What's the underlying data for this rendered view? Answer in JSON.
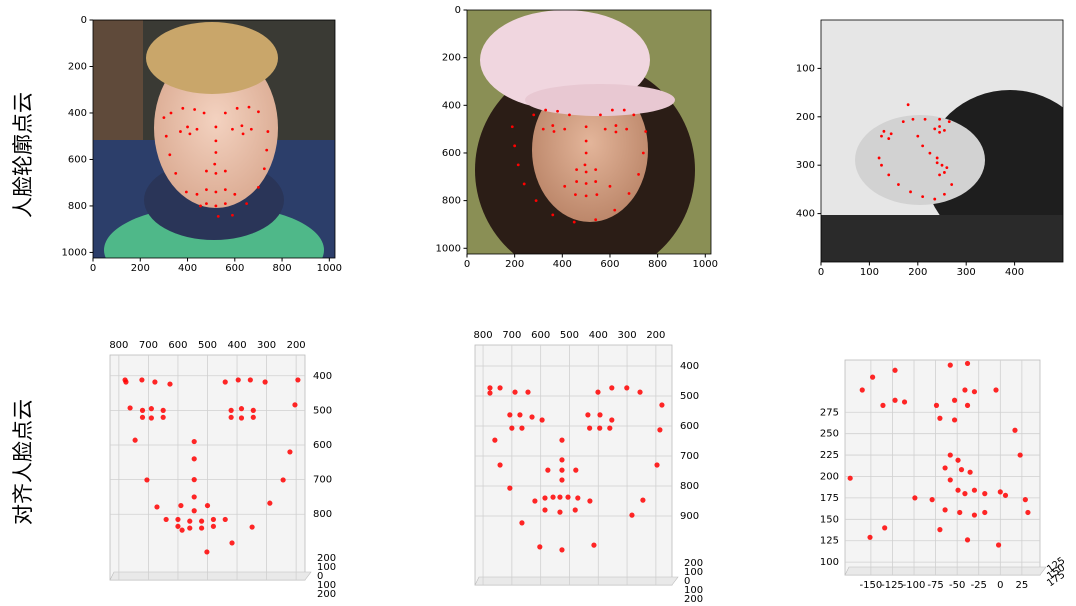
{
  "row_labels": [
    "人脸轮廓点云",
    "对齐人脸点云"
  ],
  "chart_data": [
    {
      "type": "imshow",
      "color": "#ff0000",
      "xlim": [
        0,
        1024
      ],
      "ylim": [
        1024,
        0
      ],
      "xticks": [
        0,
        200,
        400,
        600,
        800,
        1000
      ],
      "yticks": [
        0,
        200,
        400,
        600,
        800,
        1000
      ],
      "x": [
        300,
        310,
        325,
        350,
        395,
        455,
        530,
        590,
        650,
        700,
        725,
        735,
        740,
        330,
        380,
        430,
        470,
        560,
        610,
        660,
        700,
        520,
        520,
        520,
        515,
        480,
        520,
        560,
        370,
        400,
        440,
        410,
        590,
        630,
        670,
        635,
        440,
        480,
        520,
        560,
        600,
        560,
        520,
        480
      ],
      "y": [
        420,
        500,
        580,
        660,
        740,
        800,
        845,
        840,
        790,
        720,
        640,
        560,
        480,
        400,
        380,
        385,
        400,
        400,
        380,
        375,
        395,
        460,
        520,
        570,
        620,
        650,
        660,
        650,
        480,
        460,
        470,
        490,
        470,
        455,
        470,
        490,
        750,
        730,
        740,
        730,
        750,
        790,
        800,
        790
      ]
    },
    {
      "type": "imshow",
      "color": "#ff0000",
      "xlim": [
        0,
        1024
      ],
      "ylim": [
        1024,
        0
      ],
      "xticks": [
        0,
        200,
        400,
        600,
        800,
        1000
      ],
      "yticks": [
        0,
        200,
        400,
        600,
        800,
        1000
      ],
      "x": [
        190,
        200,
        215,
        240,
        290,
        360,
        450,
        540,
        620,
        680,
        720,
        740,
        750,
        280,
        330,
        380,
        430,
        560,
        610,
        660,
        700,
        500,
        500,
        500,
        495,
        460,
        500,
        540,
        320,
        360,
        410,
        365,
        580,
        625,
        670,
        625,
        410,
        460,
        500,
        540,
        600,
        545,
        500,
        455
      ],
      "y": [
        490,
        570,
        650,
        730,
        800,
        860,
        890,
        880,
        840,
        770,
        690,
        600,
        510,
        440,
        420,
        425,
        440,
        440,
        420,
        420,
        440,
        490,
        550,
        600,
        650,
        670,
        680,
        670,
        500,
        485,
        500,
        510,
        500,
        485,
        500,
        512,
        740,
        720,
        728,
        720,
        740,
        775,
        780,
        775
      ]
    },
    {
      "type": "imshow",
      "color": "#ff0000",
      "xlim": [
        0,
        500
      ],
      "ylim": [
        500,
        0
      ],
      "xticks": [
        0,
        100,
        200,
        300,
        400
      ],
      "yticks": [
        100,
        200,
        300,
        400
      ],
      "x": [
        120,
        125,
        140,
        160,
        185,
        210,
        235,
        255,
        270,
        170,
        190,
        215,
        245,
        265,
        125,
        130,
        145,
        140,
        235,
        245,
        255,
        245,
        180,
        200,
        210,
        225,
        240,
        240,
        250,
        260,
        255,
        245
      ],
      "y": [
        285,
        300,
        320,
        340,
        355,
        365,
        370,
        360,
        340,
        210,
        205,
        205,
        205,
        210,
        240,
        230,
        235,
        245,
        225,
        220,
        228,
        232,
        175,
        240,
        260,
        275,
        285,
        295,
        300,
        305,
        315,
        320
      ]
    },
    {
      "type": "scatter3d",
      "color": "#ff0000",
      "xlim": [
        830,
        170
      ],
      "ylim": [
        990,
        340
      ],
      "xticks": [
        800,
        700,
        600,
        500,
        400,
        300,
        200
      ],
      "yticks": [
        400,
        500,
        600,
        700,
        800
      ],
      "zticks": [
        200,
        100,
        0,
        100,
        200
      ],
      "x": [
        779,
        762,
        745,
        705,
        671,
        586,
        502,
        417,
        349,
        289,
        244,
        221,
        204,
        194,
        776,
        722,
        678,
        627,
        440,
        396,
        355,
        305,
        720,
        690,
        650,
        690,
        720,
        650,
        420,
        385,
        345,
        385,
        420,
        345,
        545,
        545,
        545,
        545,
        590,
        545,
        500,
        640,
        600,
        560,
        520,
        480,
        440,
        560,
        520,
        600,
        480
      ],
      "y": [
        412,
        493,
        586,
        701,
        779,
        846,
        909,
        883,
        837,
        768,
        701,
        620,
        484,
        412,
        418,
        412,
        418,
        424,
        418,
        412,
        412,
        418,
        500,
        495,
        500,
        522,
        520,
        520,
        500,
        495,
        500,
        522,
        520,
        520,
        590,
        640,
        700,
        750,
        775,
        790,
        775,
        815,
        815,
        820,
        820,
        815,
        815,
        840,
        840,
        835,
        835
      ]
    },
    {
      "type": "scatter3d",
      "color": "#ff0000",
      "xlim": [
        828,
        144
      ],
      "ylim": [
        1130,
        330
      ],
      "xticks": [
        800,
        700,
        600,
        500,
        400,
        300,
        200
      ],
      "yticks": [
        400,
        500,
        600,
        700,
        800,
        900
      ],
      "zticks": [
        200,
        100,
        0,
        100,
        200
      ],
      "x": [
        776,
        741,
        689,
        644,
        401,
        353,
        301,
        255,
        707,
        672,
        630,
        595,
        436,
        394,
        353,
        700,
        665,
        430,
        395,
        360,
        526,
        526,
        526,
        526,
        575,
        478,
        620,
        585,
        557,
        533,
        505,
        471,
        429,
        585,
        533,
        480,
        603,
        526,
        415,
        776,
        759,
        741,
        707,
        665,
        283,
        245,
        196,
        186,
        179
      ],
      "y": [
        473,
        473,
        487,
        487,
        487,
        473,
        473,
        487,
        563,
        563,
        570,
        580,
        563,
        563,
        580,
        607,
        607,
        607,
        607,
        607,
        647,
        713,
        747,
        780,
        747,
        747,
        850,
        840,
        837,
        837,
        837,
        840,
        850,
        880,
        887,
        880,
        1003,
        1013,
        997,
        490,
        647,
        730,
        807,
        923,
        897,
        847,
        730,
        613,
        530
      ]
    },
    {
      "type": "scatter3d",
      "color": "#ff0000",
      "xlim": [
        -180,
        46
      ],
      "ylim": [
        85,
        336
      ],
      "xticks": [
        -150,
        -125,
        -100,
        -75,
        -50,
        -25,
        0,
        25
      ],
      "yticks": [
        100,
        125,
        150,
        175,
        200,
        225,
        250,
        275
      ],
      "zticks": [
        125,
        150,
        175
      ],
      "x": [
        -148,
        -122,
        -58,
        -38,
        -5,
        -160,
        -136,
        -122,
        -111,
        -74,
        -53,
        -41,
        -30,
        -70,
        -53,
        -38,
        -174,
        -151,
        -134,
        -99,
        -79,
        -64,
        -58,
        -58,
        -49,
        -45,
        -35,
        -64,
        -49,
        -41,
        -30,
        -18,
        0,
        6,
        -47,
        -30,
        -18,
        -70,
        -38,
        -2,
        17,
        23,
        29,
        32
      ],
      "y": [
        316,
        324,
        330,
        332,
        301,
        301,
        283,
        289,
        287,
        283,
        289,
        301,
        299,
        268,
        266,
        283,
        198,
        129,
        140,
        175,
        173,
        161,
        196,
        225,
        219,
        208,
        205,
        210,
        184,
        180,
        184,
        180,
        182,
        178,
        158,
        155,
        158,
        138,
        126,
        120,
        254,
        225,
        173,
        158
      ]
    }
  ]
}
